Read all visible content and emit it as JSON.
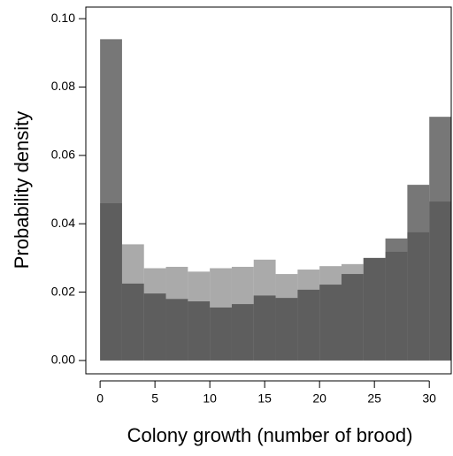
{
  "chart_data": {
    "type": "histogram",
    "x_label": "Colony growth (number of brood)",
    "y_label": "Probability density",
    "bins": [
      0,
      2,
      4,
      6,
      8,
      10,
      12,
      14,
      16,
      18,
      20,
      22,
      24,
      26,
      28,
      30,
      32
    ],
    "series": [
      {
        "color": "#868686",
        "values": [
          0.046,
          0.034,
          0.027,
          0.0274,
          0.026,
          0.027,
          0.0274,
          0.0295,
          0.0253,
          0.0266,
          0.0276,
          0.0282,
          0.03,
          0.0318,
          0.0375,
          0.0465
        ]
      },
      {
        "color": "#3d3d3d",
        "values": [
          0.094,
          0.0225,
          0.0196,
          0.018,
          0.0173,
          0.0155,
          0.0165,
          0.019,
          0.0183,
          0.0207,
          0.0222,
          0.0253,
          0.03,
          0.0357,
          0.0514,
          0.0713
        ]
      }
    ],
    "alpha": 0.7,
    "xlim": [
      -1.3,
      32
    ],
    "ylim": [
      -0.0039,
      0.1034
    ],
    "xticks": [
      0,
      5,
      10,
      15,
      20,
      25,
      30
    ],
    "yticks": [
      {
        "value": 0,
        "label": "0.00"
      },
      {
        "value": 0.02,
        "label": "0.02"
      },
      {
        "value": 0.04,
        "label": "0.04"
      },
      {
        "value": 0.06,
        "label": "0.06"
      },
      {
        "value": 0.08,
        "label": "0.08"
      },
      {
        "value": 0.1,
        "label": "0.10"
      }
    ]
  }
}
